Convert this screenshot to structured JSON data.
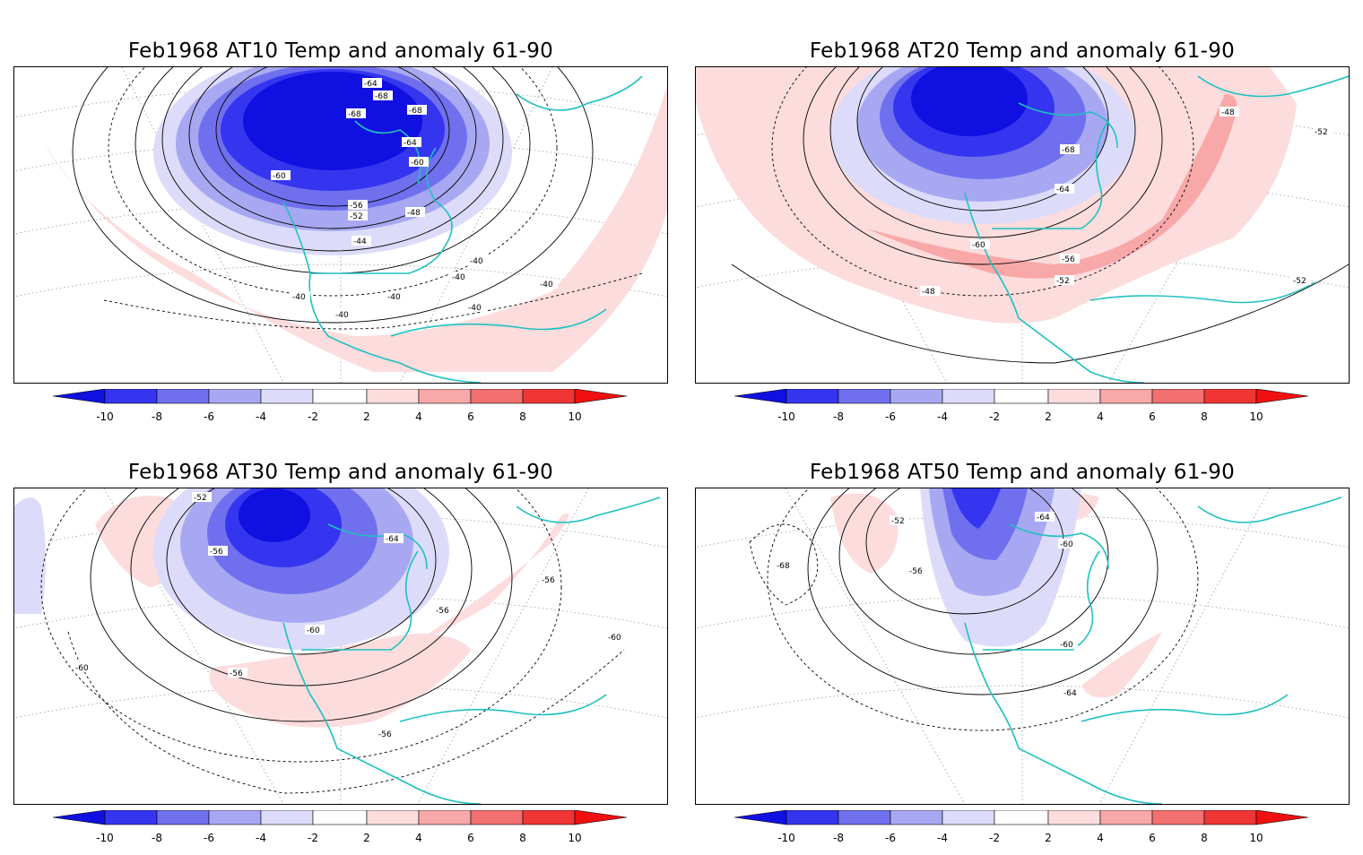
{
  "anomaly_colors": {
    "-10": "#1010e0",
    "-8": "#3535f0",
    "-6": "#7070ee",
    "-4": "#a8a8f2",
    "-2": "#dcdcfa",
    "2": "#fcdcdc",
    "4": "#f8a8a8",
    "6": "#f27070",
    "8": "#f03535",
    "10": "#f01010"
  },
  "coast_color": "#20c0c0",
  "colorbar": {
    "labels": [
      "-10",
      "-8",
      "-6",
      "-4",
      "-2",
      "2",
      "4",
      "6",
      "8",
      "10"
    ]
  },
  "panels": [
    {
      "title": "Feb1968 AT10 Temp and anomaly 61-90",
      "contour_labels": [
        "-64",
        "-68",
        "-68",
        "-68",
        "-64",
        "-60",
        "-60",
        "-56",
        "-52",
        "-48",
        "-44",
        "-40",
        "-40",
        "-40",
        "-40",
        "-40",
        "-40",
        "-40"
      ]
    },
    {
      "title": "Feb1968 AT20 Temp and anomaly 61-90",
      "contour_labels": [
        "-48",
        "-52",
        "-68",
        "-64",
        "-60",
        "-56",
        "-52",
        "-48",
        "-52"
      ]
    },
    {
      "title": "Feb1968 AT30 Temp and anomaly 61-90",
      "contour_labels": [
        "-52",
        "-56",
        "-64",
        "-56",
        "-56",
        "-60",
        "-60",
        "-60",
        "-56",
        "-56"
      ]
    },
    {
      "title": "Feb1968 AT50 Temp and anomaly 61-90",
      "contour_labels": [
        "-64",
        "-52",
        "-60",
        "-56",
        "-68",
        "-60",
        "-64"
      ]
    }
  ]
}
